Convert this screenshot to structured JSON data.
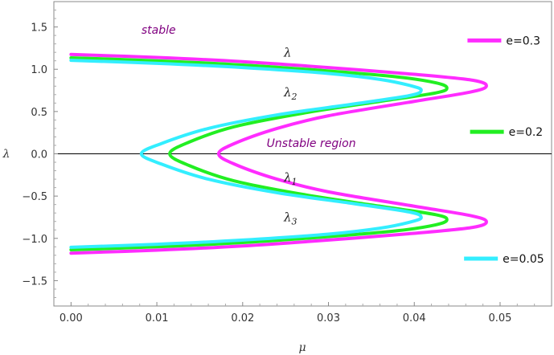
{
  "chart_data": {
    "type": "line",
    "title": "",
    "xlabel": "μ",
    "ylabel": "λ",
    "xlim": [
      -0.002,
      0.056
    ],
    "ylim": [
      -1.8,
      1.8
    ],
    "x_ticks": [
      0.0,
      0.01,
      0.02,
      0.03,
      0.04,
      0.05
    ],
    "x_tick_labels": [
      "0.00",
      "0.01",
      "0.02",
      "0.03",
      "0.04",
      "0.05"
    ],
    "y_ticks": [
      -1.5,
      -1.0,
      -0.5,
      0.0,
      0.5,
      1.0,
      1.5
    ],
    "y_tick_labels": [
      "−1.5",
      "−1.0",
      "−0.5",
      "0.0",
      "0.5",
      "1.0",
      "1.5"
    ],
    "zero_line": true,
    "grid": false,
    "legend_placement": "right",
    "series": [
      {
        "name": "e=0.3",
        "color": "#ff2cff",
        "points": [
          [
            0.0,
            1.175
          ],
          [
            0.01,
            1.14
          ],
          [
            0.02,
            1.09
          ],
          [
            0.03,
            1.02
          ],
          [
            0.04,
            0.94
          ],
          [
            0.0468,
            0.87
          ],
          [
            0.0484,
            0.8
          ],
          [
            0.0465,
            0.73
          ],
          [
            0.04,
            0.62
          ],
          [
            0.03,
            0.45
          ],
          [
            0.024,
            0.3
          ],
          [
            0.019,
            0.12
          ],
          [
            0.0172,
            0.0
          ],
          [
            0.019,
            -0.12
          ],
          [
            0.024,
            -0.3
          ],
          [
            0.03,
            -0.45
          ],
          [
            0.04,
            -0.62
          ],
          [
            0.0465,
            -0.73
          ],
          [
            0.0484,
            -0.8
          ],
          [
            0.0468,
            -0.87
          ],
          [
            0.04,
            -0.94
          ],
          [
            0.03,
            -1.02
          ],
          [
            0.02,
            -1.09
          ],
          [
            0.01,
            -1.14
          ],
          [
            0.0,
            -1.175
          ]
        ]
      },
      {
        "name": "e=0.2",
        "color": "#22ee22",
        "points": [
          [
            0.0,
            1.135
          ],
          [
            0.01,
            1.1
          ],
          [
            0.02,
            1.05
          ],
          [
            0.03,
            0.98
          ],
          [
            0.038,
            0.91
          ],
          [
            0.0425,
            0.84
          ],
          [
            0.0438,
            0.78
          ],
          [
            0.0425,
            0.72
          ],
          [
            0.036,
            0.62
          ],
          [
            0.027,
            0.48
          ],
          [
            0.019,
            0.32
          ],
          [
            0.0138,
            0.14
          ],
          [
            0.0115,
            0.0
          ],
          [
            0.0138,
            -0.14
          ],
          [
            0.019,
            -0.32
          ],
          [
            0.027,
            -0.48
          ],
          [
            0.036,
            -0.62
          ],
          [
            0.0425,
            -0.72
          ],
          [
            0.0438,
            -0.78
          ],
          [
            0.0425,
            -0.84
          ],
          [
            0.038,
            -0.91
          ],
          [
            0.03,
            -0.98
          ],
          [
            0.02,
            -1.05
          ],
          [
            0.01,
            -1.1
          ],
          [
            0.0,
            -1.135
          ]
        ]
      },
      {
        "name": "e=0.05",
        "color": "#33eeff",
        "points": [
          [
            0.0,
            1.105
          ],
          [
            0.01,
            1.07
          ],
          [
            0.02,
            1.02
          ],
          [
            0.03,
            0.95
          ],
          [
            0.036,
            0.88
          ],
          [
            0.0398,
            0.8
          ],
          [
            0.0408,
            0.75
          ],
          [
            0.0395,
            0.69
          ],
          [
            0.033,
            0.59
          ],
          [
            0.024,
            0.46
          ],
          [
            0.016,
            0.3
          ],
          [
            0.0105,
            0.12
          ],
          [
            0.0082,
            0.0
          ],
          [
            0.0105,
            -0.12
          ],
          [
            0.016,
            -0.3
          ],
          [
            0.024,
            -0.46
          ],
          [
            0.033,
            -0.59
          ],
          [
            0.0395,
            -0.69
          ],
          [
            0.0408,
            -0.75
          ],
          [
            0.0398,
            -0.8
          ],
          [
            0.036,
            -0.88
          ],
          [
            0.03,
            -0.95
          ],
          [
            0.02,
            -1.02
          ],
          [
            0.01,
            -1.07
          ],
          [
            0.0,
            -1.105
          ]
        ]
      }
    ],
    "annotations": [
      {
        "text": "stable",
        "x": 0.0082,
        "y": 1.42,
        "color": "#800080"
      },
      {
        "text": "Unstable region",
        "x": 0.0228,
        "y": 0.08,
        "color": "#800080"
      }
    ],
    "curve_labels": [
      {
        "text": "λ",
        "sub": "",
        "x": 0.0248,
        "y": 1.15
      },
      {
        "text": "λ",
        "sub": "2",
        "x": 0.0248,
        "y": 0.68
      },
      {
        "text": "λ",
        "sub": "1",
        "x": 0.0248,
        "y": -0.33
      },
      {
        "text": "λ",
        "sub": "3",
        "x": 0.0248,
        "y": -0.8
      }
    ],
    "legend": [
      {
        "name": "e=0.3",
        "color": "#ff2cff",
        "x": 0.0462,
        "y": 1.34
      },
      {
        "name": "e=0.2",
        "color": "#22ee22",
        "x": 0.0465,
        "y": 0.26
      },
      {
        "name": "e=0.05",
        "color": "#33eeff",
        "x": 0.0458,
        "y": -1.24
      }
    ]
  }
}
